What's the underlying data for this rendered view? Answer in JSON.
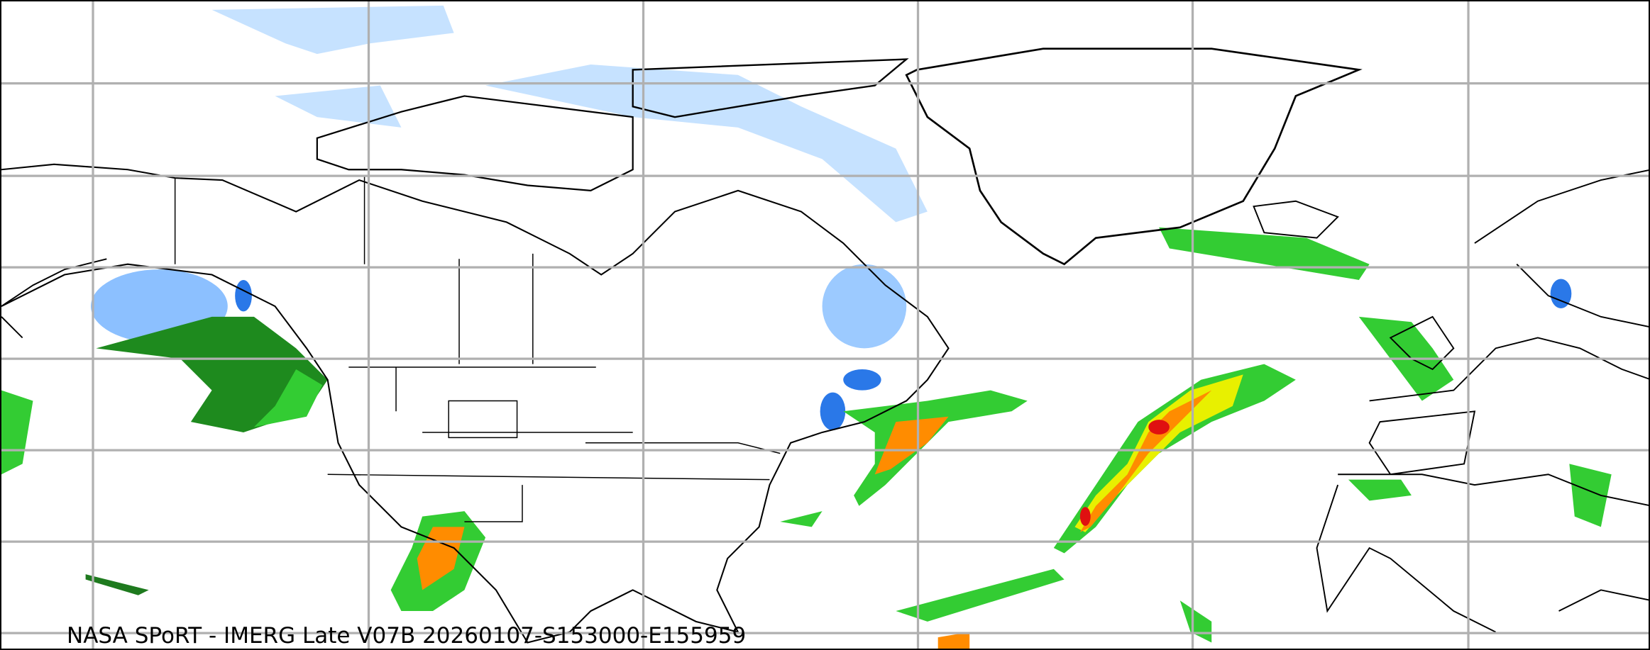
{
  "map": {
    "caption": "NASA SPoRT - IMERG Late V07B 20260107-S153000-E155959",
    "projection": "equirectangular",
    "gridlines": true,
    "colors": {
      "light_snow": "#c6e2ff",
      "snow": "#6fb0ff",
      "heavy_snow": "#1f6fe0",
      "light_rain": "#1e7a1e",
      "rain": "#33cc33",
      "moderate_rain": "#e8f000",
      "heavy_rain": "#ff8c00",
      "very_heavy_rain": "#e01010",
      "grid": "#b0b0b0",
      "borders": "#000000"
    }
  }
}
